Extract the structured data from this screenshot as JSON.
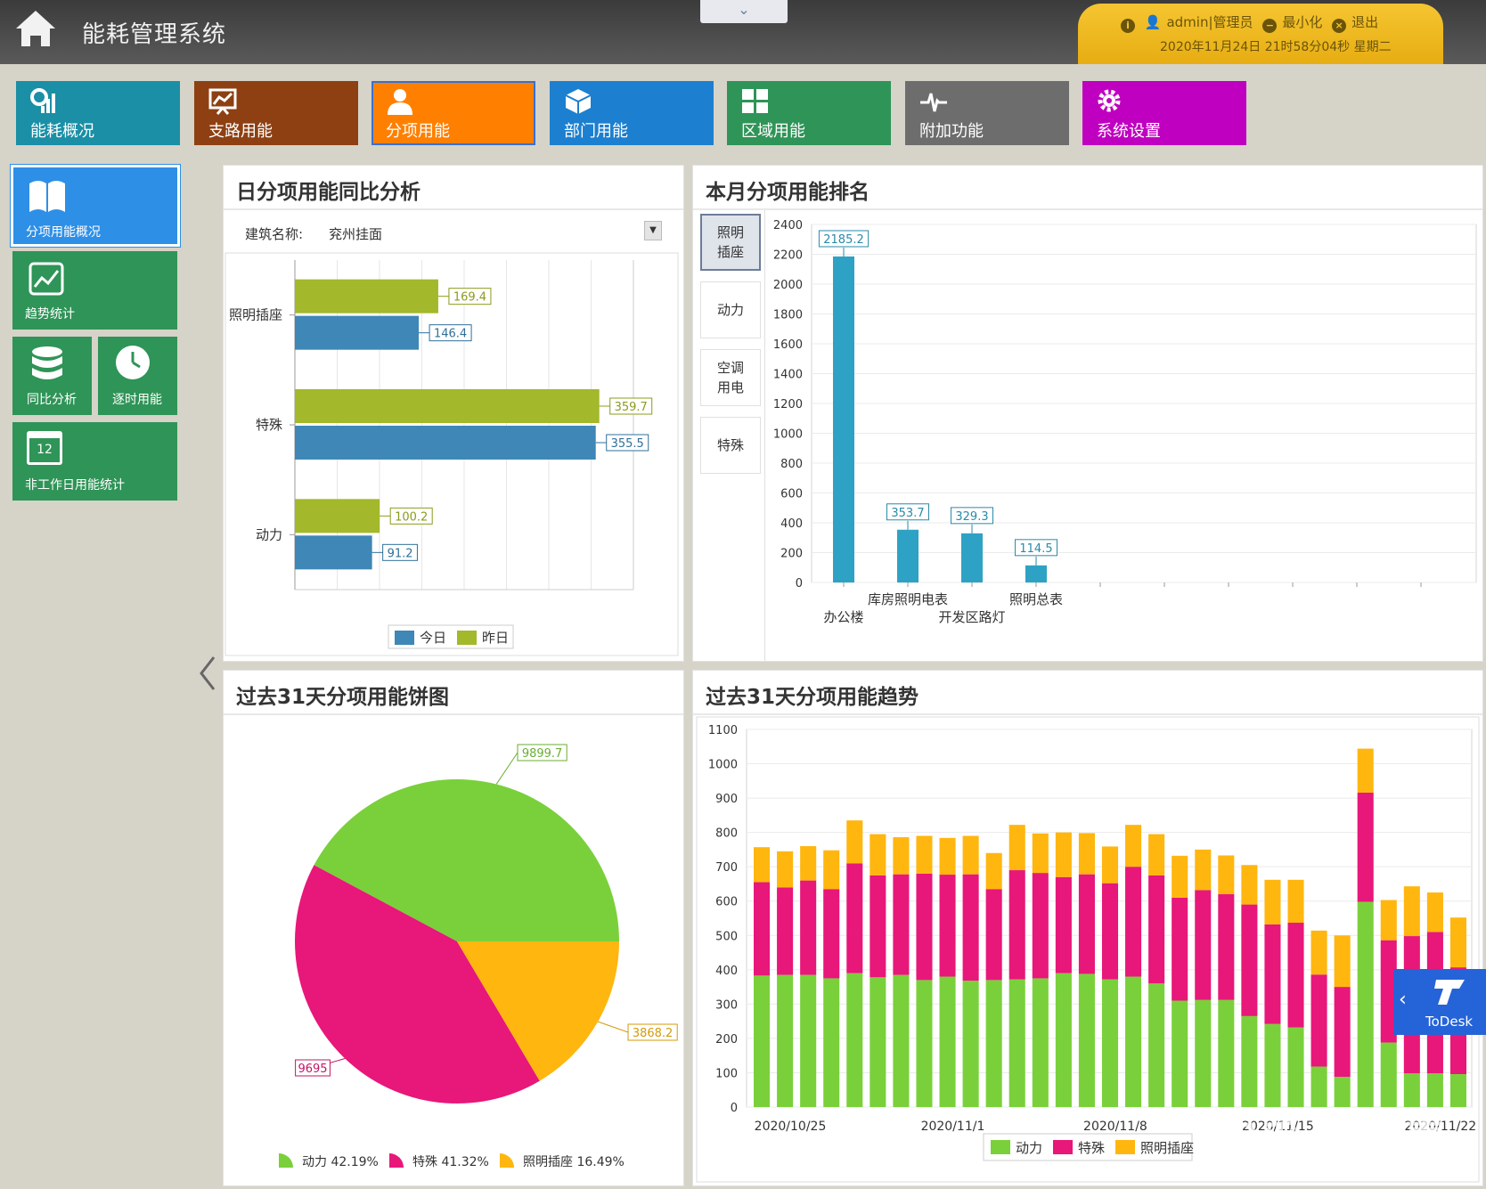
{
  "app": {
    "title": "能耗管理系统"
  },
  "user_panel": {
    "user": "admin|管理员",
    "minimize": "最小化",
    "logout": "退出",
    "datetime": "2020年11月24日 21时58分04秒 星期二"
  },
  "nav": [
    {
      "label": "能耗概况",
      "color": "#1a8fa6"
    },
    {
      "label": "支路用能",
      "color": "#8e4012"
    },
    {
      "label": "分项用能",
      "color": "#ff8000"
    },
    {
      "label": "部门用能",
      "color": "#1d7fcf"
    },
    {
      "label": "区域用能",
      "color": "#2f9457"
    },
    {
      "label": "附加功能",
      "color": "#6d6d6d"
    },
    {
      "label": "系统设置",
      "color": "#c000c0"
    }
  ],
  "side": [
    {
      "label": "分项用能概况"
    },
    {
      "label": "趋势统计"
    },
    {
      "label": "同比分析"
    },
    {
      "label": "逐时用能"
    },
    {
      "label": "非工作日用能统计",
      "icon_text": "12"
    }
  ],
  "panel_daily": {
    "title": "日分项用能同比分析",
    "building_label": "建筑名称:",
    "building_value": "兖州挂面"
  },
  "panel_rank": {
    "title": "本月分项用能排名",
    "tabs": [
      {
        "line1": "照明",
        "line2": "插座"
      },
      {
        "line1": "动力",
        "line2": ""
      },
      {
        "line1": "空调",
        "line2": "用电"
      },
      {
        "line1": "特殊",
        "line2": ""
      }
    ]
  },
  "panel_pie": {
    "title": "过去31天分项用能饼图"
  },
  "panel_trend": {
    "title": "过去31天分项用能趋势"
  },
  "colors": {
    "today": "#3e87b6",
    "yesterday": "#a3b82a",
    "rank": "#2ea2c4",
    "power": "#7ad03a",
    "special": "#e8177a",
    "lighting": "#ffb60f"
  },
  "chart_data": [
    {
      "type": "bar",
      "orientation": "horizontal",
      "categories": [
        "照明插座",
        "特殊",
        "动力"
      ],
      "series": [
        {
          "name": "昨日",
          "values": [
            169.4,
            359.7,
            100.2
          ]
        },
        {
          "name": "今日",
          "values": [
            146.4,
            355.5,
            91.2
          ]
        }
      ],
      "xlim": [
        0,
        400
      ],
      "legend": "bottom",
      "grid": true
    },
    {
      "type": "bar",
      "categories": [
        "办公楼",
        "库房照明电表",
        "开发区路灯",
        "照明总表"
      ],
      "values": [
        2185.2,
        353.7,
        329.3,
        114.5
      ],
      "yticks": [
        "0",
        "200",
        "400",
        "600",
        "800",
        "1000",
        "1200",
        "1400",
        "1600",
        "1800",
        "2000",
        "2200",
        "2400"
      ],
      "ylim": [
        0,
        2400
      ],
      "grid": true
    },
    {
      "type": "pie",
      "slices": [
        {
          "name": "动力",
          "value": 9899.7,
          "percent": "42.19%"
        },
        {
          "name": "特殊",
          "value": 9695,
          "percent": "41.32%"
        },
        {
          "name": "照明插座",
          "value": 3868.2,
          "percent": "16.49%"
        }
      ],
      "legend": "bottom"
    },
    {
      "type": "bar",
      "stacked": true,
      "xticks": [
        "2020/10/25",
        "2020/11/1",
        "2020/11/8",
        "2020/11/15",
        "2020/11/22"
      ],
      "yticks": [
        "0",
        "100",
        "200",
        "300",
        "400",
        "500",
        "600",
        "700",
        "800",
        "900",
        "1000",
        "1100"
      ],
      "ylim": [
        0,
        1100
      ],
      "series": [
        {
          "name": "动力",
          "values": [
            383,
            385,
            385,
            375,
            390,
            378,
            385,
            370,
            380,
            368,
            370,
            372,
            375,
            390,
            388,
            372,
            380,
            360,
            310,
            312,
            312,
            265,
            242,
            232,
            118,
            88,
            598,
            188,
            98,
            98,
            96
          ]
        },
        {
          "name": "特殊",
          "values": [
            272,
            255,
            275,
            260,
            320,
            297,
            293,
            310,
            297,
            310,
            265,
            318,
            307,
            280,
            290,
            280,
            320,
            315,
            300,
            320,
            308,
            325,
            290,
            305,
            268,
            262,
            318,
            298,
            400,
            412,
            311
          ]
        },
        {
          "name": "照明插座",
          "values": [
            102,
            105,
            100,
            113,
            125,
            120,
            108,
            110,
            107,
            112,
            105,
            132,
            115,
            130,
            120,
            107,
            122,
            120,
            122,
            118,
            113,
            115,
            130,
            125,
            128,
            150,
            128,
            117,
            145,
            115,
            145
          ]
        }
      ],
      "legend": "bottom",
      "grid": true
    }
  ]
}
